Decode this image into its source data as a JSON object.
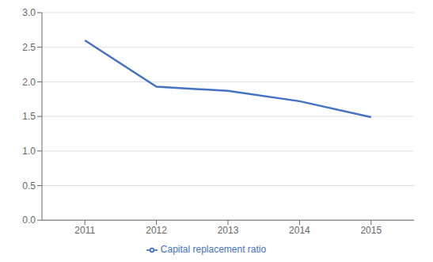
{
  "chart_data": {
    "type": "line",
    "x": [
      2011,
      2012,
      2013,
      2014,
      2015
    ],
    "series": [
      {
        "name": "Capital replacement ratio",
        "color": "#4472C4",
        "values": [
          2.6,
          1.93,
          1.87,
          1.72,
          1.49
        ]
      }
    ],
    "xlim": [
      2010.4,
      2015.6
    ],
    "xticks": [
      2011,
      2012,
      2013,
      2014,
      2015
    ],
    "ylim": [
      0.0,
      3.0
    ],
    "yticks": [
      {
        "value": 0.0,
        "label": "0.0"
      },
      0.5,
      {
        "value": 1.0,
        "label": "1.0"
      },
      1.5,
      {
        "value": 2.0,
        "label": "2.0"
      },
      2.5,
      {
        "value": 3.0,
        "label": "3.0"
      }
    ],
    "grid": true,
    "legend": "bottom"
  }
}
